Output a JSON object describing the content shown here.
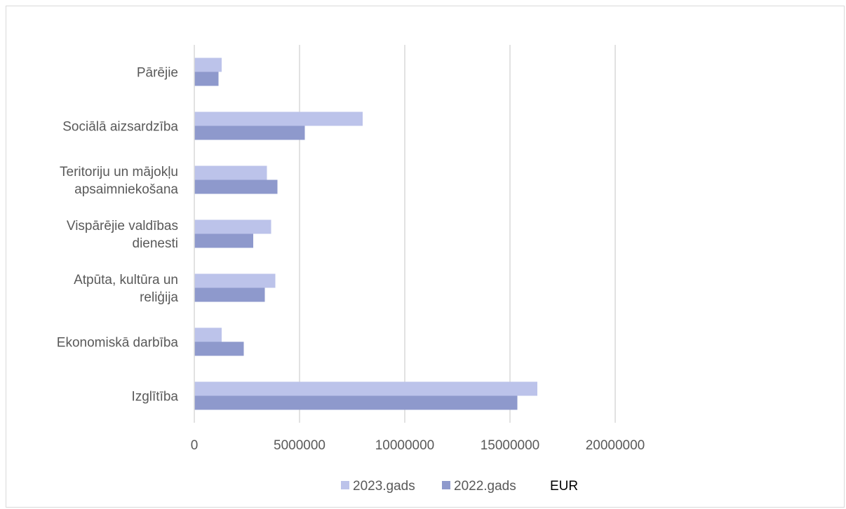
{
  "chart_data": {
    "type": "bar",
    "orientation": "horizontal",
    "categories": [
      "Izglītība",
      "Ekonomiskā darbība",
      "Atpūta, kultūra un reliģija",
      "Vispārējie valdības dienesti",
      "Teritoriju un mājokļu apsaimniekošana",
      "Sociālā aizsardzība",
      "Pārējie"
    ],
    "category_lines": [
      [
        "Izglītība"
      ],
      [
        "Ekonomiskā darbība"
      ],
      [
        "Atpūta, kultūra un",
        "reliģija"
      ],
      [
        "Vispārējie valdības",
        "dienesti"
      ],
      [
        "Teritoriju un mājokļu",
        "apsaimniekošana"
      ],
      [
        "Sociālā aizsardzība"
      ],
      [
        "Pārējie"
      ]
    ],
    "series": [
      {
        "name": "2023.gads",
        "color": "#bcc3ea",
        "values": [
          16300000,
          1300000,
          3850000,
          3650000,
          3450000,
          8000000,
          1300000
        ]
      },
      {
        "name": "2022.gads",
        "color": "#8e99cc",
        "values": [
          15350000,
          2350000,
          3350000,
          2800000,
          3950000,
          5250000,
          1150000
        ]
      }
    ],
    "xlim": [
      0,
      20000000
    ],
    "xticks": [
      0,
      5000000,
      10000000,
      15000000,
      20000000
    ],
    "xtick_labels": [
      "0",
      "5000000",
      "10000000",
      "15000000",
      "20000000"
    ],
    "unit_label": "EUR",
    "grid": "vertical",
    "gridline_color": "#d9d9d9",
    "legend_position": "bottom"
  }
}
